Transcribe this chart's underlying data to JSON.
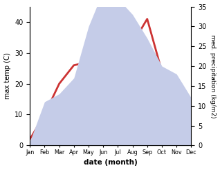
{
  "months": [
    "Jan",
    "Feb",
    "Mar",
    "Apr",
    "May",
    "Jun",
    "Jul",
    "Aug",
    "Sep",
    "Oct",
    "Nov",
    "Dec"
  ],
  "month_indices": [
    1,
    2,
    3,
    4,
    5,
    6,
    7,
    8,
    9,
    10,
    11,
    12
  ],
  "temperature": [
    2,
    10,
    20,
    26,
    27,
    35,
    28,
    33,
    41,
    24,
    19,
    12
  ],
  "precipitation": [
    1,
    11,
    13,
    17,
    30,
    39,
    37,
    33,
    27,
    20,
    18,
    12
  ],
  "temp_color": "#cc3333",
  "precip_fill_color": "#c5cce8",
  "temp_ylim": [
    0,
    45
  ],
  "precip_ylim": [
    0,
    35
  ],
  "temp_yticks": [
    0,
    10,
    20,
    30,
    40
  ],
  "precip_yticks": [
    0,
    5,
    10,
    15,
    20,
    25,
    30,
    35
  ],
  "ylabel_left": "max temp (C)",
  "ylabel_right": "med. precipitation (kg/m2)",
  "xlabel": "date (month)",
  "line_width": 2.0,
  "bg_color": "#ffffff"
}
